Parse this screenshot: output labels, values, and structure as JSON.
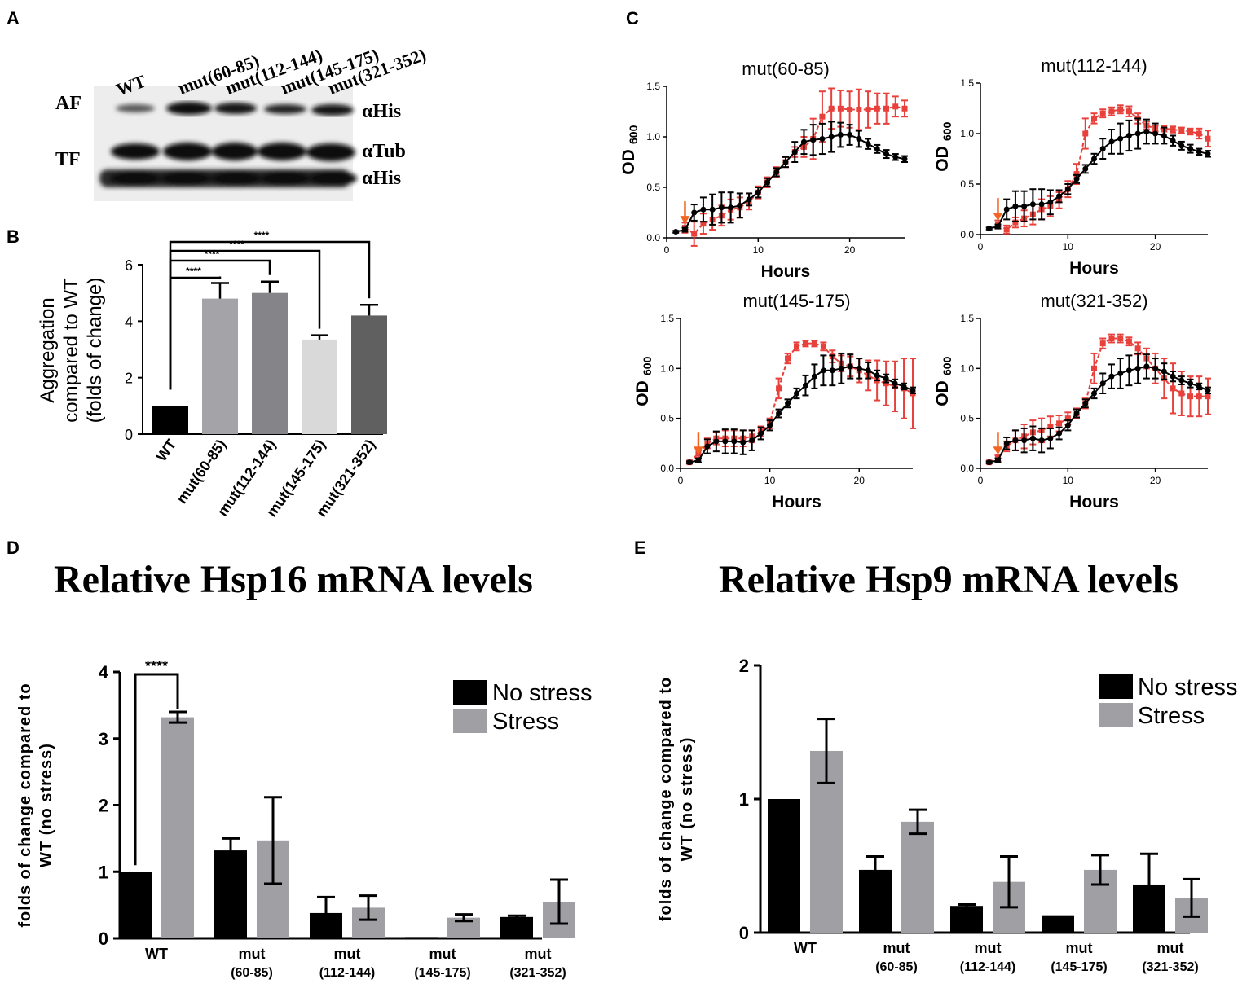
{
  "panel_labels": {
    "a": "A",
    "b": "B",
    "c": "C",
    "d": "D",
    "e": "E"
  },
  "colors": {
    "black_series": "#000000",
    "red_series": "#e8413c",
    "arrow": "#f26522",
    "gray_bar": "#a0a0a4"
  },
  "blot": {
    "lanes": [
      "WT",
      "mut(60-85)",
      "mut(112-144)",
      "mut(145-175)",
      "mut(321-352)"
    ],
    "row_labels": [
      "AF",
      "TF"
    ],
    "band_labels": [
      "αHis",
      "αTub",
      "αHis"
    ]
  },
  "chart_data": [
    {
      "id": "B",
      "type": "bar",
      "ylabel_lines": [
        "Aggregation",
        "compared to WT",
        "(folds of change)"
      ],
      "categories": [
        "WT",
        "mut(60-85)",
        "mut(112-144)",
        "mut(145-175)",
        "mut(321-352)"
      ],
      "values": [
        1.0,
        4.8,
        5.0,
        3.35,
        4.2
      ],
      "errors": [
        0,
        0.55,
        0.4,
        0.15,
        0.38
      ],
      "bar_colors": [
        "#000000",
        "#a3a3a8",
        "#858589",
        "#d9d9d9",
        "#606060"
      ],
      "ylim": [
        0,
        6
      ],
      "yticks": [
        0,
        2,
        4,
        6
      ],
      "significance": [
        "****",
        "****",
        "****",
        "****"
      ]
    },
    {
      "id": "C1",
      "type": "line",
      "title": "mut(60-85)",
      "xlabel": "Hours",
      "ylabel": "OD",
      "ylabel_sub": "600",
      "xlim": [
        0,
        26
      ],
      "ylim": [
        0,
        1.5
      ],
      "xticks": [
        0,
        10,
        20
      ],
      "yticks": [
        "0.0",
        "0.5",
        "1.0",
        "1.5"
      ],
      "arrow_x": 2,
      "series": [
        {
          "color": "black",
          "x": [
            1,
            2,
            3,
            4,
            5,
            6,
            7,
            8,
            9,
            10,
            11,
            12,
            13,
            14,
            15,
            16,
            17,
            18,
            19,
            20,
            21,
            22,
            23,
            24,
            25,
            26
          ],
          "y": [
            0.06,
            0.08,
            0.25,
            0.28,
            0.28,
            0.3,
            0.3,
            0.32,
            0.38,
            0.45,
            0.55,
            0.65,
            0.75,
            0.85,
            0.95,
            0.97,
            0.98,
            1.0,
            1.02,
            1.02,
            0.98,
            0.93,
            0.88,
            0.83,
            0.8,
            0.78
          ],
          "err": [
            0.01,
            0.02,
            0.08,
            0.12,
            0.15,
            0.15,
            0.15,
            0.12,
            0.06,
            0.05,
            0.04,
            0.04,
            0.05,
            0.1,
            0.12,
            0.15,
            0.15,
            0.15,
            0.12,
            0.1,
            0.08,
            0.05,
            0.04,
            0.04,
            0.03,
            0.03
          ]
        },
        {
          "color": "red",
          "x": [
            2,
            3,
            4,
            5,
            6,
            7,
            8,
            9,
            10,
            11,
            12,
            13,
            14,
            15,
            16,
            17,
            18,
            19,
            20,
            21,
            22,
            23,
            24,
            25,
            26
          ],
          "y": [
            0.1,
            0.04,
            0.14,
            0.18,
            0.22,
            0.28,
            0.3,
            0.36,
            0.45,
            0.55,
            0.65,
            0.75,
            0.85,
            0.9,
            0.98,
            1.2,
            1.28,
            1.28,
            1.27,
            1.27,
            1.27,
            1.28,
            1.28,
            1.3,
            1.28
          ],
          "err": [
            0.05,
            0.12,
            0.1,
            0.1,
            0.1,
            0.1,
            0.1,
            0.08,
            0.06,
            0.05,
            0.05,
            0.05,
            0.05,
            0.1,
            0.2,
            0.25,
            0.2,
            0.18,
            0.18,
            0.2,
            0.18,
            0.15,
            0.15,
            0.1,
            0.08
          ]
        }
      ]
    },
    {
      "id": "C2",
      "type": "line",
      "title": "mut(112-144)",
      "xlabel": "Hours",
      "ylabel": "OD",
      "ylabel_sub": "600",
      "xlim": [
        0,
        26
      ],
      "ylim": [
        0,
        1.5
      ],
      "xticks": [
        0,
        10,
        20
      ],
      "yticks": [
        "0.0",
        "0.5",
        "1.0",
        "1.5"
      ],
      "arrow_x": 2,
      "series": [
        {
          "color": "black",
          "x": [
            1,
            2,
            3,
            4,
            5,
            6,
            7,
            8,
            9,
            10,
            11,
            12,
            13,
            14,
            15,
            16,
            17,
            18,
            19,
            20,
            21,
            22,
            23,
            24,
            25,
            26
          ],
          "y": [
            0.06,
            0.08,
            0.25,
            0.28,
            0.28,
            0.3,
            0.3,
            0.32,
            0.38,
            0.45,
            0.55,
            0.65,
            0.75,
            0.85,
            0.92,
            0.95,
            0.98,
            1.0,
            1.02,
            1.0,
            0.98,
            0.93,
            0.88,
            0.85,
            0.82,
            0.8
          ],
          "err": [
            0.01,
            0.02,
            0.1,
            0.15,
            0.15,
            0.15,
            0.15,
            0.12,
            0.06,
            0.05,
            0.04,
            0.04,
            0.05,
            0.1,
            0.12,
            0.15,
            0.15,
            0.15,
            0.12,
            0.1,
            0.08,
            0.05,
            0.04,
            0.04,
            0.03,
            0.03
          ]
        },
        {
          "color": "red",
          "x": [
            2,
            3,
            4,
            5,
            6,
            7,
            8,
            9,
            10,
            11,
            12,
            13,
            14,
            15,
            16,
            17,
            18,
            19,
            20,
            21,
            22,
            23,
            24,
            25,
            26
          ],
          "y": [
            0.1,
            0.05,
            0.12,
            0.16,
            0.2,
            0.25,
            0.28,
            0.34,
            0.45,
            0.6,
            1.0,
            1.15,
            1.2,
            1.22,
            1.24,
            1.22,
            1.15,
            1.08,
            1.05,
            1.05,
            1.04,
            1.03,
            1.02,
            1.0,
            0.95
          ],
          "err": [
            0.04,
            0.04,
            0.05,
            0.08,
            0.1,
            0.1,
            0.1,
            0.08,
            0.08,
            0.1,
            0.15,
            0.05,
            0.04,
            0.04,
            0.04,
            0.05,
            0.05,
            0.04,
            0.03,
            0.03,
            0.03,
            0.03,
            0.03,
            0.05,
            0.08
          ]
        }
      ]
    },
    {
      "id": "C3",
      "type": "line",
      "title": "mut(145-175)",
      "xlabel": "Hours",
      "ylabel": "OD",
      "ylabel_sub": "600",
      "xlim": [
        0,
        26
      ],
      "ylim": [
        0,
        1.5
      ],
      "xticks": [
        0,
        10,
        20
      ],
      "yticks": [
        "0.0",
        "0.5",
        "1.0",
        "1.5"
      ],
      "arrow_x": 2,
      "series": [
        {
          "color": "black",
          "x": [
            1,
            2,
            3,
            4,
            5,
            6,
            7,
            8,
            9,
            10,
            11,
            12,
            13,
            14,
            15,
            16,
            17,
            18,
            19,
            20,
            21,
            22,
            23,
            24,
            25,
            26
          ],
          "y": [
            0.06,
            0.08,
            0.22,
            0.27,
            0.27,
            0.27,
            0.26,
            0.28,
            0.35,
            0.43,
            0.55,
            0.65,
            0.75,
            0.83,
            0.92,
            0.98,
            0.98,
            1.0,
            1.02,
            1.0,
            0.98,
            0.93,
            0.9,
            0.85,
            0.82,
            0.78
          ],
          "err": [
            0.01,
            0.02,
            0.07,
            0.1,
            0.12,
            0.12,
            0.12,
            0.1,
            0.06,
            0.05,
            0.04,
            0.04,
            0.05,
            0.1,
            0.12,
            0.15,
            0.15,
            0.15,
            0.12,
            0.1,
            0.08,
            0.05,
            0.04,
            0.04,
            0.03,
            0.03
          ]
        },
        {
          "color": "red",
          "x": [
            1,
            2,
            3,
            4,
            5,
            6,
            7,
            8,
            9,
            10,
            11,
            12,
            13,
            14,
            15,
            16,
            17,
            18,
            19,
            20,
            21,
            22,
            23,
            24,
            25,
            26
          ],
          "y": [
            0.06,
            0.15,
            0.25,
            0.3,
            0.3,
            0.3,
            0.3,
            0.32,
            0.37,
            0.45,
            0.8,
            1.1,
            1.22,
            1.25,
            1.25,
            1.22,
            1.12,
            1.05,
            1.02,
            0.98,
            0.93,
            0.88,
            0.85,
            0.82,
            0.8,
            0.75
          ],
          "err": [
            0.01,
            0.04,
            0.05,
            0.06,
            0.08,
            0.08,
            0.08,
            0.06,
            0.05,
            0.05,
            0.1,
            0.05,
            0.04,
            0.03,
            0.03,
            0.04,
            0.06,
            0.08,
            0.1,
            0.12,
            0.15,
            0.2,
            0.22,
            0.25,
            0.3,
            0.35
          ]
        }
      ]
    },
    {
      "id": "C4",
      "type": "line",
      "title": "mut(321-352)",
      "xlabel": "Hours",
      "ylabel": "OD",
      "ylabel_sub": "600",
      "xlim": [
        0,
        26
      ],
      "ylim": [
        0,
        1.5
      ],
      "xticks": [
        0,
        10,
        20
      ],
      "yticks": [
        "0.0",
        "0.5",
        "1.0",
        "1.5"
      ],
      "arrow_x": 2,
      "series": [
        {
          "color": "black",
          "x": [
            1,
            2,
            3,
            4,
            5,
            6,
            7,
            8,
            9,
            10,
            11,
            12,
            13,
            14,
            15,
            16,
            17,
            18,
            19,
            20,
            21,
            22,
            23,
            24,
            25,
            26
          ],
          "y": [
            0.06,
            0.08,
            0.25,
            0.28,
            0.28,
            0.3,
            0.28,
            0.3,
            0.35,
            0.43,
            0.55,
            0.65,
            0.75,
            0.85,
            0.92,
            0.95,
            0.98,
            1.0,
            1.02,
            1.0,
            0.97,
            0.92,
            0.88,
            0.85,
            0.82,
            0.78
          ],
          "err": [
            0.01,
            0.02,
            0.06,
            0.1,
            0.12,
            0.12,
            0.12,
            0.1,
            0.06,
            0.05,
            0.04,
            0.04,
            0.05,
            0.1,
            0.12,
            0.15,
            0.15,
            0.15,
            0.12,
            0.1,
            0.08,
            0.05,
            0.04,
            0.04,
            0.03,
            0.03
          ]
        },
        {
          "color": "red",
          "x": [
            1,
            2,
            3,
            4,
            5,
            6,
            7,
            8,
            9,
            10,
            11,
            12,
            13,
            14,
            15,
            16,
            17,
            18,
            19,
            20,
            21,
            22,
            23,
            24,
            25,
            26
          ],
          "y": [
            0.06,
            0.1,
            0.22,
            0.28,
            0.32,
            0.36,
            0.38,
            0.42,
            0.45,
            0.5,
            0.55,
            0.65,
            1.0,
            1.25,
            1.3,
            1.3,
            1.27,
            1.2,
            1.1,
            1.0,
            0.9,
            0.8,
            0.75,
            0.72,
            0.72,
            0.72
          ],
          "err": [
            0.01,
            0.03,
            0.05,
            0.1,
            0.12,
            0.12,
            0.12,
            0.1,
            0.08,
            0.06,
            0.05,
            0.05,
            0.15,
            0.05,
            0.04,
            0.04,
            0.04,
            0.06,
            0.1,
            0.15,
            0.2,
            0.25,
            0.22,
            0.2,
            0.2,
            0.18
          ]
        }
      ]
    },
    {
      "id": "D",
      "type": "bar",
      "title": "Relative Hsp16 mRNA levels",
      "ylabel_lines": [
        "folds of change compared to",
        "WT (no stress)"
      ],
      "categories": [
        [
          "WT"
        ],
        [
          "mut",
          "(60-85)"
        ],
        [
          "mut",
          "(112-144)"
        ],
        [
          "mut",
          "(145-175)"
        ],
        [
          "mut",
          "(321-352)"
        ]
      ],
      "series": [
        {
          "name": "No stress",
          "color": "#000000",
          "values": [
            1.0,
            1.32,
            0.38,
            0.02,
            0.32
          ],
          "errors": [
            0,
            0.18,
            0.24,
            0,
            0.02
          ]
        },
        {
          "name": "Stress",
          "color": "#a0a0a4",
          "values": [
            3.32,
            1.47,
            0.46,
            0.31,
            0.55
          ],
          "errors": [
            0.08,
            0.65,
            0.18,
            0.05,
            0.33
          ]
        }
      ],
      "ylim": [
        0,
        4
      ],
      "yticks": [
        0,
        1,
        2,
        3,
        4
      ],
      "significance": "****",
      "legend_position": "top-right"
    },
    {
      "id": "E",
      "type": "bar",
      "title": "Relative Hsp9 mRNA levels",
      "ylabel_lines": [
        "folds of change compared to",
        "WT (no stress)"
      ],
      "categories": [
        [
          "WT"
        ],
        [
          "mut",
          "(60-85)"
        ],
        [
          "mut",
          "(112-144)"
        ],
        [
          "mut",
          "(145-175)"
        ],
        [
          "mut",
          "(321-352)"
        ]
      ],
      "series": [
        {
          "name": "No stress",
          "color": "#000000",
          "values": [
            1.0,
            0.47,
            0.2,
            0.13,
            0.36
          ],
          "errors": [
            0,
            0.1,
            0.01,
            0,
            0.23
          ]
        },
        {
          "name": "Stress",
          "color": "#a0a0a4",
          "values": [
            1.36,
            0.83,
            0.38,
            0.47,
            0.26
          ],
          "errors": [
            0.24,
            0.09,
            0.19,
            0.11,
            0.14
          ]
        }
      ],
      "ylim": [
        0,
        2
      ],
      "yticks": [
        0,
        1,
        2
      ],
      "legend_position": "top-right"
    }
  ]
}
